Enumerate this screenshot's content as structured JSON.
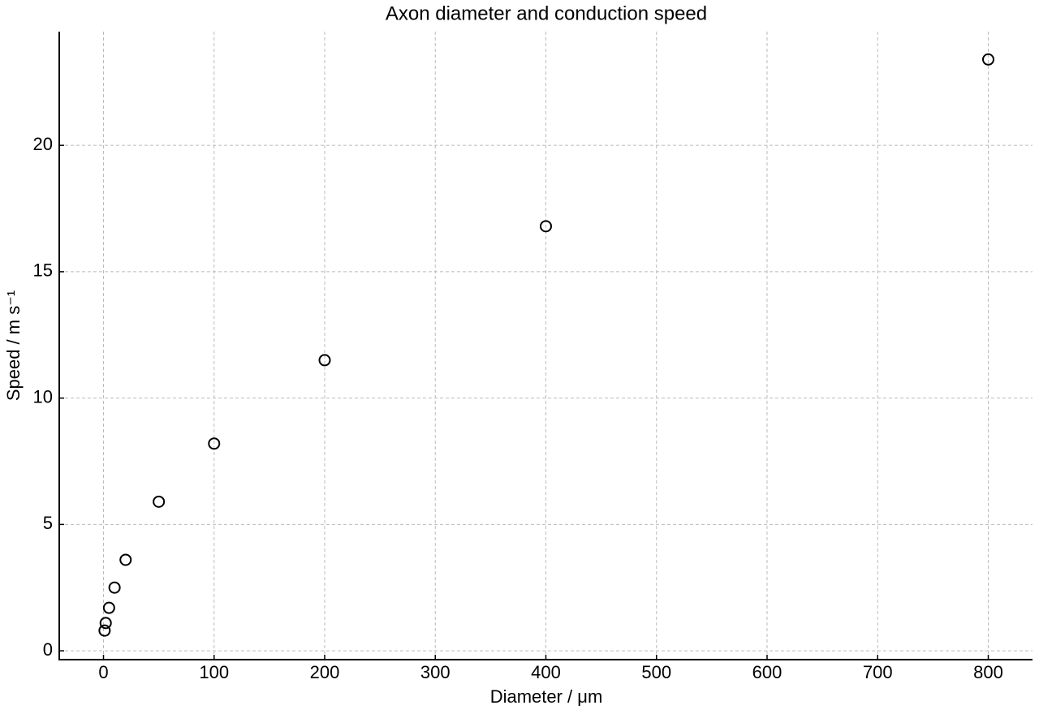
{
  "chart_data": {
    "type": "scatter",
    "title": "Axon diameter and conduction speed",
    "x_label": "Diameter / μm",
    "y_label": "Speed / m s⁻¹",
    "x": [
      1,
      2,
      5,
      10,
      20,
      50,
      100,
      200,
      400,
      800
    ],
    "values": [
      0.8,
      1.1,
      1.7,
      2.5,
      3.6,
      5.9,
      8.2,
      11.5,
      16.8,
      23.4
    ],
    "color": "#000000",
    "xlim": [
      -40,
      840
    ],
    "ylim": [
      -0.35,
      24.5
    ],
    "xticks": [
      0,
      100,
      200,
      300,
      400,
      500,
      600,
      700,
      800
    ],
    "yticks": [
      0,
      5,
      10,
      15,
      20
    ],
    "grid": true
  }
}
